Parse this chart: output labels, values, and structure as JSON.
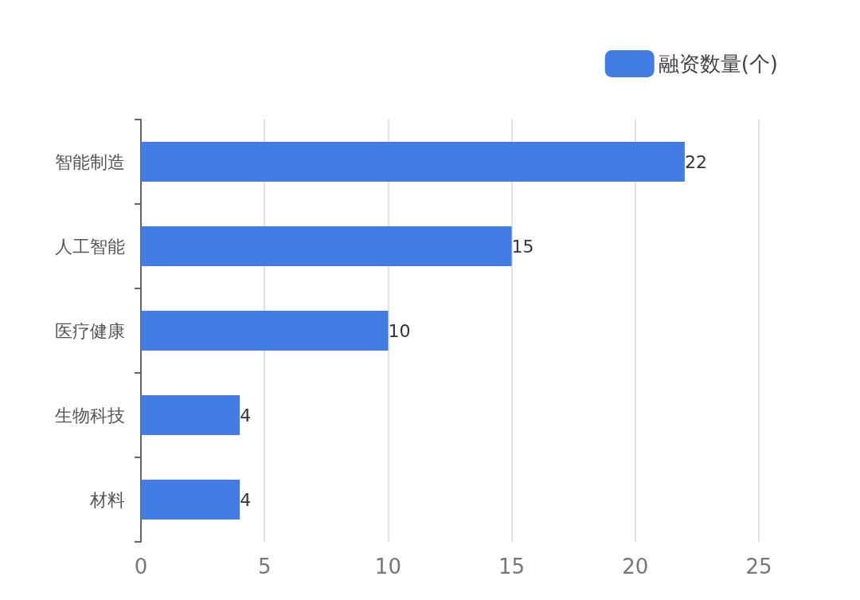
{
  "chart_data": {
    "type": "bar",
    "orientation": "horizontal",
    "categories": [
      "智能制造",
      "人工智能",
      "医疗健康",
      "生物科技",
      "材料"
    ],
    "series": [
      {
        "name": "融资数量(个)",
        "color": "#437ce2",
        "values": [
          22,
          15,
          10,
          4,
          4
        ]
      }
    ],
    "xlim": [
      0,
      25
    ],
    "xticks": [
      0,
      5,
      10,
      15,
      20,
      25
    ],
    "grid": "x",
    "legend": "top right",
    "data_labels": true
  }
}
